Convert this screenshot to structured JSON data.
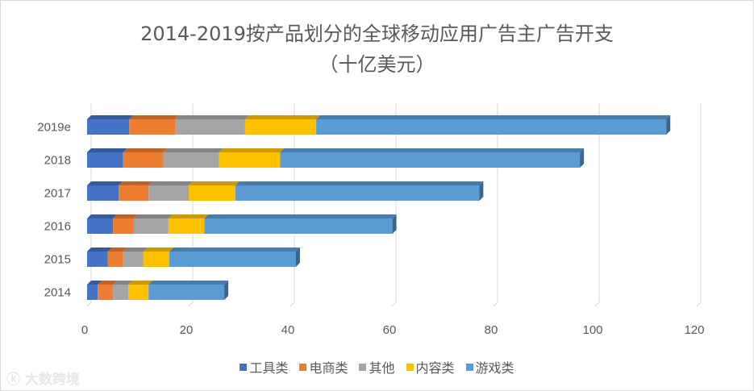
{
  "chart_data": {
    "type": "bar",
    "orientation": "horizontal",
    "stacked": true,
    "style_3d": true,
    "title_lines": [
      "2014-2019按产品划分的全球移动应用广告主广告开支",
      "（十亿美元）"
    ],
    "categories": [
      "2019e",
      "2018",
      "2017",
      "2016",
      "2015",
      "2014"
    ],
    "series": [
      {
        "name": "工具类",
        "color": "#4472c4",
        "values": [
          8.3,
          7.1,
          6.2,
          5.1,
          4.1,
          2.1
        ]
      },
      {
        "name": "电商类",
        "color": "#ed7d31",
        "values": [
          9.0,
          7.9,
          5.9,
          4.1,
          3.0,
          3.0
        ]
      },
      {
        "name": "其他",
        "color": "#a5a5a5",
        "values": [
          13.8,
          11.0,
          7.9,
          6.8,
          4.0,
          3.0
        ]
      },
      {
        "name": "内容类",
        "color": "#ffc000",
        "values": [
          14.0,
          12.0,
          9.2,
          7.1,
          5.1,
          4.0
        ]
      },
      {
        "name": "游戏类",
        "color": "#5b9bd5",
        "values": [
          68.9,
          59.0,
          48.0,
          37.0,
          24.9,
          14.9
        ]
      }
    ],
    "xlim": [
      0,
      120
    ],
    "xticks": [
      "0",
      "20",
      "40",
      "60",
      "80",
      "100",
      "120"
    ],
    "grid": "vertical",
    "legend_position": "bottom"
  },
  "watermark": "大数跨境"
}
